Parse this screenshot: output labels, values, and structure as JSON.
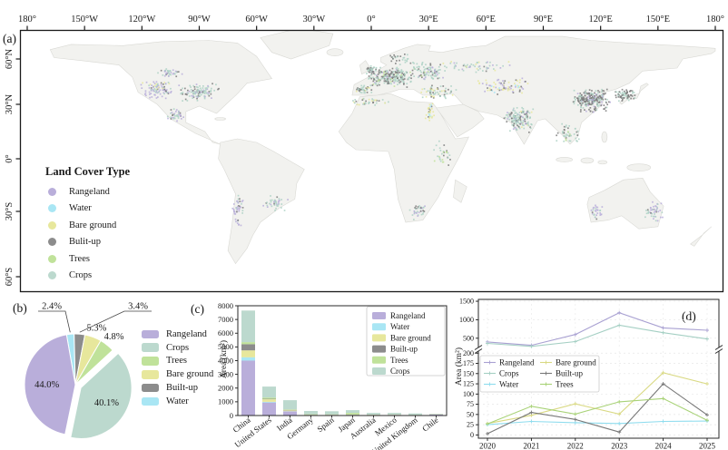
{
  "figure": {
    "panel_a_label": "(a)",
    "panel_b_label": "(b)",
    "panel_c_label": "(c)",
    "panel_d_label": "(d)"
  },
  "palette": {
    "rangeland": "#b9aeda",
    "water": "#a9e6f4",
    "bare_ground": "#e7e79c",
    "built_up": "#8c8c8c",
    "trees": "#c0e29a",
    "crops": "#bcd9ce"
  },
  "map": {
    "lon_ticks": [
      "180°",
      "150°W",
      "120°W",
      "90°W",
      "60°W",
      "30°W",
      "0°",
      "30°E",
      "60°E",
      "90°E",
      "120°E",
      "150°E",
      "180°"
    ],
    "lat_ticks": [
      "60°N",
      "30°N",
      "0°",
      "30°S",
      "60°S"
    ],
    "legend_title": "Land Cover Type",
    "legend_items": [
      {
        "label": "Rangeland",
        "key": "rangeland"
      },
      {
        "label": "Water",
        "key": "water"
      },
      {
        "label": "Bare ground",
        "key": "bare_ground"
      },
      {
        "label": "Bulit-up",
        "key": "built_up"
      },
      {
        "label": "Trees",
        "key": "trees"
      },
      {
        "label": "Crops",
        "key": "crops"
      }
    ]
  },
  "chart_data": [
    {
      "id": "land-cover-share-pie",
      "type": "pie",
      "start_angle_deg": -10,
      "slices": [
        {
          "label": "Water",
          "key": "water",
          "value": 2.4
        },
        {
          "label": "Built-up",
          "key": "built_up",
          "value": 3.4
        },
        {
          "label": "Bare ground",
          "key": "bare_ground",
          "value": 5.3
        },
        {
          "label": "Trees",
          "key": "trees",
          "value": 4.8
        },
        {
          "label": "Crops",
          "key": "crops",
          "value": 40.1,
          "exploded": true
        },
        {
          "label": "Rangeland",
          "key": "rangeland",
          "value": 44.0
        }
      ],
      "legend_order": [
        "Rangeland",
        "Crops",
        "Trees",
        "Bare ground",
        "Built-up",
        "Water"
      ]
    },
    {
      "id": "area-by-country-bars",
      "type": "bar",
      "stacked": true,
      "ylabel": "Area (km²)",
      "ylim": [
        0,
        8000
      ],
      "ytick_step": 1000,
      "categories": [
        "China",
        "United States",
        "India",
        "Germany",
        "Spain",
        "Japan",
        "Australia",
        "Mexico",
        "United Kingdom",
        "Chile"
      ],
      "series": [
        {
          "name": "Rangeland",
          "key": "rangeland",
          "values": [
            4000,
            950,
            300,
            30,
            40,
            30,
            40,
            50,
            20,
            80
          ]
        },
        {
          "name": "Water",
          "key": "water",
          "values": [
            250,
            50,
            20,
            5,
            5,
            10,
            5,
            5,
            5,
            5
          ]
        },
        {
          "name": "Bare ground",
          "key": "bare_ground",
          "values": [
            500,
            180,
            60,
            10,
            15,
            10,
            10,
            10,
            5,
            10
          ]
        },
        {
          "name": "Built-up",
          "key": "built_up",
          "values": [
            450,
            40,
            30,
            15,
            10,
            20,
            5,
            5,
            10,
            5
          ]
        },
        {
          "name": "Trees",
          "key": "trees",
          "values": [
            150,
            90,
            40,
            30,
            20,
            120,
            15,
            15,
            15,
            10
          ]
        },
        {
          "name": "Crops",
          "key": "crops",
          "values": [
            2300,
            800,
            670,
            240,
            220,
            200,
            120,
            110,
            100,
            20
          ]
        }
      ]
    },
    {
      "id": "area-by-year-lines",
      "type": "line",
      "ylabel": "Area (km²)",
      "x": [
        2020,
        2021,
        2022,
        2023,
        2024,
        2025
      ],
      "broken_axis": {
        "top_ticks": [
          500,
          1000,
          1500
        ],
        "top_range": [
          250,
          1550
        ],
        "bottom_ticks": [
          0,
          25,
          50,
          75,
          100,
          125,
          150,
          175,
          200
        ],
        "bottom_range": [
          -8,
          205
        ]
      },
      "series": [
        {
          "name": "Rangeland",
          "key": "rangeland",
          "segment": "top",
          "values": [
            400,
            310,
            600,
            1190,
            780,
            715
          ]
        },
        {
          "name": "Crops",
          "key": "crops",
          "segment": "top",
          "values": [
            360,
            280,
            410,
            850,
            650,
            480
          ]
        },
        {
          "name": "Water",
          "key": "water",
          "segment": "bottom",
          "values": [
            25,
            33,
            30,
            28,
            33,
            34
          ]
        },
        {
          "name": "Bare ground",
          "key": "bare_ground",
          "segment": "bottom",
          "values": [
            28,
            48,
            76,
            51,
            152,
            125
          ]
        },
        {
          "name": "Built-up",
          "key": "built_up",
          "segment": "bottom",
          "values": [
            3,
            55,
            38,
            7,
            125,
            49
          ]
        },
        {
          "name": "Trees",
          "key": "trees",
          "segment": "bottom",
          "values": [
            27,
            70,
            51,
            81,
            89,
            36
          ]
        }
      ],
      "legend_col1": [
        "Rangeland",
        "Crops",
        "Water"
      ],
      "legend_col2": [
        "Bare ground",
        "Built-up",
        "Trees"
      ]
    }
  ]
}
